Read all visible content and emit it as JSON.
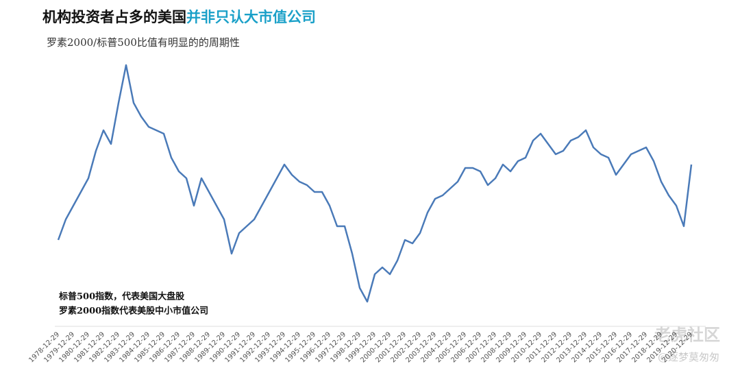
{
  "chart_data": {
    "type": "line",
    "title": "机构投资者占多的美国",
    "title_highlight": "并非只认大市值公司",
    "subtitle": "罗素2000/标普500比值有明显的的周期性",
    "annotations": [
      "标普500指数，代表美国大盘股",
      "罗素2000指数代表美股中小市值公司"
    ],
    "watermark": [
      "老虎社区",
      "@逐梦莫匆匆"
    ],
    "categories": [
      "1978-12-29",
      null,
      "1979-12-29",
      null,
      "1980-12-29",
      null,
      "1981-12-29",
      null,
      "1982-12-29",
      null,
      "1983-12-29",
      null,
      "1984-12-29",
      null,
      "1985-12-29",
      null,
      "1986-12-29",
      null,
      "1987-12-29",
      null,
      "1988-12-29",
      null,
      "1989-12-29",
      null,
      "1990-12-29",
      null,
      "1991-12-29",
      null,
      "1992-12-29",
      null,
      "1993-12-29",
      null,
      "1994-12-29",
      null,
      "1995-12-29",
      null,
      "1996-12-29",
      null,
      "1997-12-29",
      null,
      "1998-12-29",
      null,
      "1999-12-29",
      null,
      "2000-12-29",
      null,
      "2001-12-29",
      null,
      "2002-12-29",
      null,
      "2003-12-29",
      null,
      "2004-12-29",
      null,
      "2005-12-29",
      null,
      "2006-12-29",
      null,
      "2007-12-29",
      null,
      "2008-12-29",
      null,
      "2009-12-29",
      null,
      "2010-12-29",
      null,
      "2011-12-29",
      null,
      "2012-12-29",
      null,
      "2013-12-29",
      null,
      "2014-12-29",
      null,
      "2015-12-29",
      null,
      "2016-12-29",
      null,
      "2017-12-29",
      null,
      "2018-12-29",
      null,
      "2019-12-29",
      null,
      "2020-12-29"
    ],
    "series": [
      {
        "color": "#4a7ab8",
        "values": [
          130,
          160,
          180,
          200,
          220,
          260,
          290,
          270,
          330,
          385,
          330,
          310,
          295,
          290,
          285,
          250,
          230,
          220,
          180,
          220,
          200,
          180,
          160,
          110,
          140,
          150,
          160,
          180,
          200,
          220,
          240,
          225,
          215,
          210,
          200,
          200,
          180,
          150,
          150,
          110,
          60,
          40,
          80,
          90,
          80,
          100,
          130,
          125,
          140,
          170,
          190,
          195,
          205,
          215,
          235,
          235,
          230,
          210,
          220,
          240,
          230,
          245,
          250,
          275,
          285,
          270,
          255,
          260,
          275,
          280,
          290,
          265,
          255,
          250,
          225,
          240,
          255,
          260,
          265,
          245,
          215,
          195,
          180,
          150,
          240
        ]
      }
    ],
    "ylim": [
      0,
      400
    ]
  }
}
